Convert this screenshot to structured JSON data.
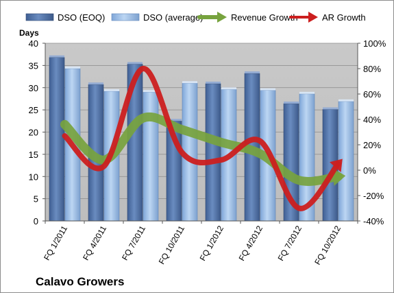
{
  "chart_data": {
    "type": "bar",
    "categories": [
      "FQ 1/2011",
      "FQ 4/2011",
      "FQ 7/2011",
      "FQ 10/2011",
      "FQ 1/2012",
      "FQ 4/2012",
      "FQ 7/2012",
      "FQ 10/2012"
    ],
    "series": [
      {
        "name": "DSO (EOQ)",
        "type": "bar",
        "axis": "left",
        "color": "#4f6fa3",
        "values": [
          36.8,
          30.7,
          35.3,
          22.5,
          30.9,
          33.2,
          26.4,
          25.1
        ]
      },
      {
        "name": "DSO (average)",
        "type": "bar",
        "axis": "left",
        "color": "#8fb4e3",
        "values": [
          34.3,
          29.2,
          29.0,
          31.0,
          29.6,
          29.4,
          28.6,
          26.9
        ]
      },
      {
        "name": "Revenue Growth",
        "type": "line",
        "axis": "right",
        "color": "#77a33e",
        "values": [
          36,
          8,
          41,
          32,
          22,
          13,
          -8,
          -5
        ]
      },
      {
        "name": "AR Growth",
        "type": "line",
        "axis": "right",
        "color": "#cc1f1f",
        "values": [
          27,
          3,
          80,
          14,
          8,
          23,
          -30,
          5
        ]
      }
    ],
    "ylabel": "Days",
    "ylim": [
      0,
      40
    ],
    "yticks": [
      "0",
      "5",
      "10",
      "15",
      "20",
      "25",
      "30",
      "35",
      "40"
    ],
    "y2lim": [
      -40,
      100
    ],
    "y2ticks": [
      "-40%",
      "-20%",
      "0%",
      "20%",
      "40%",
      "60%",
      "80%",
      "100%"
    ],
    "grid": true,
    "legend_position": "top",
    "plot_background": "#c0c0c0",
    "title": "Calavo Growers"
  }
}
